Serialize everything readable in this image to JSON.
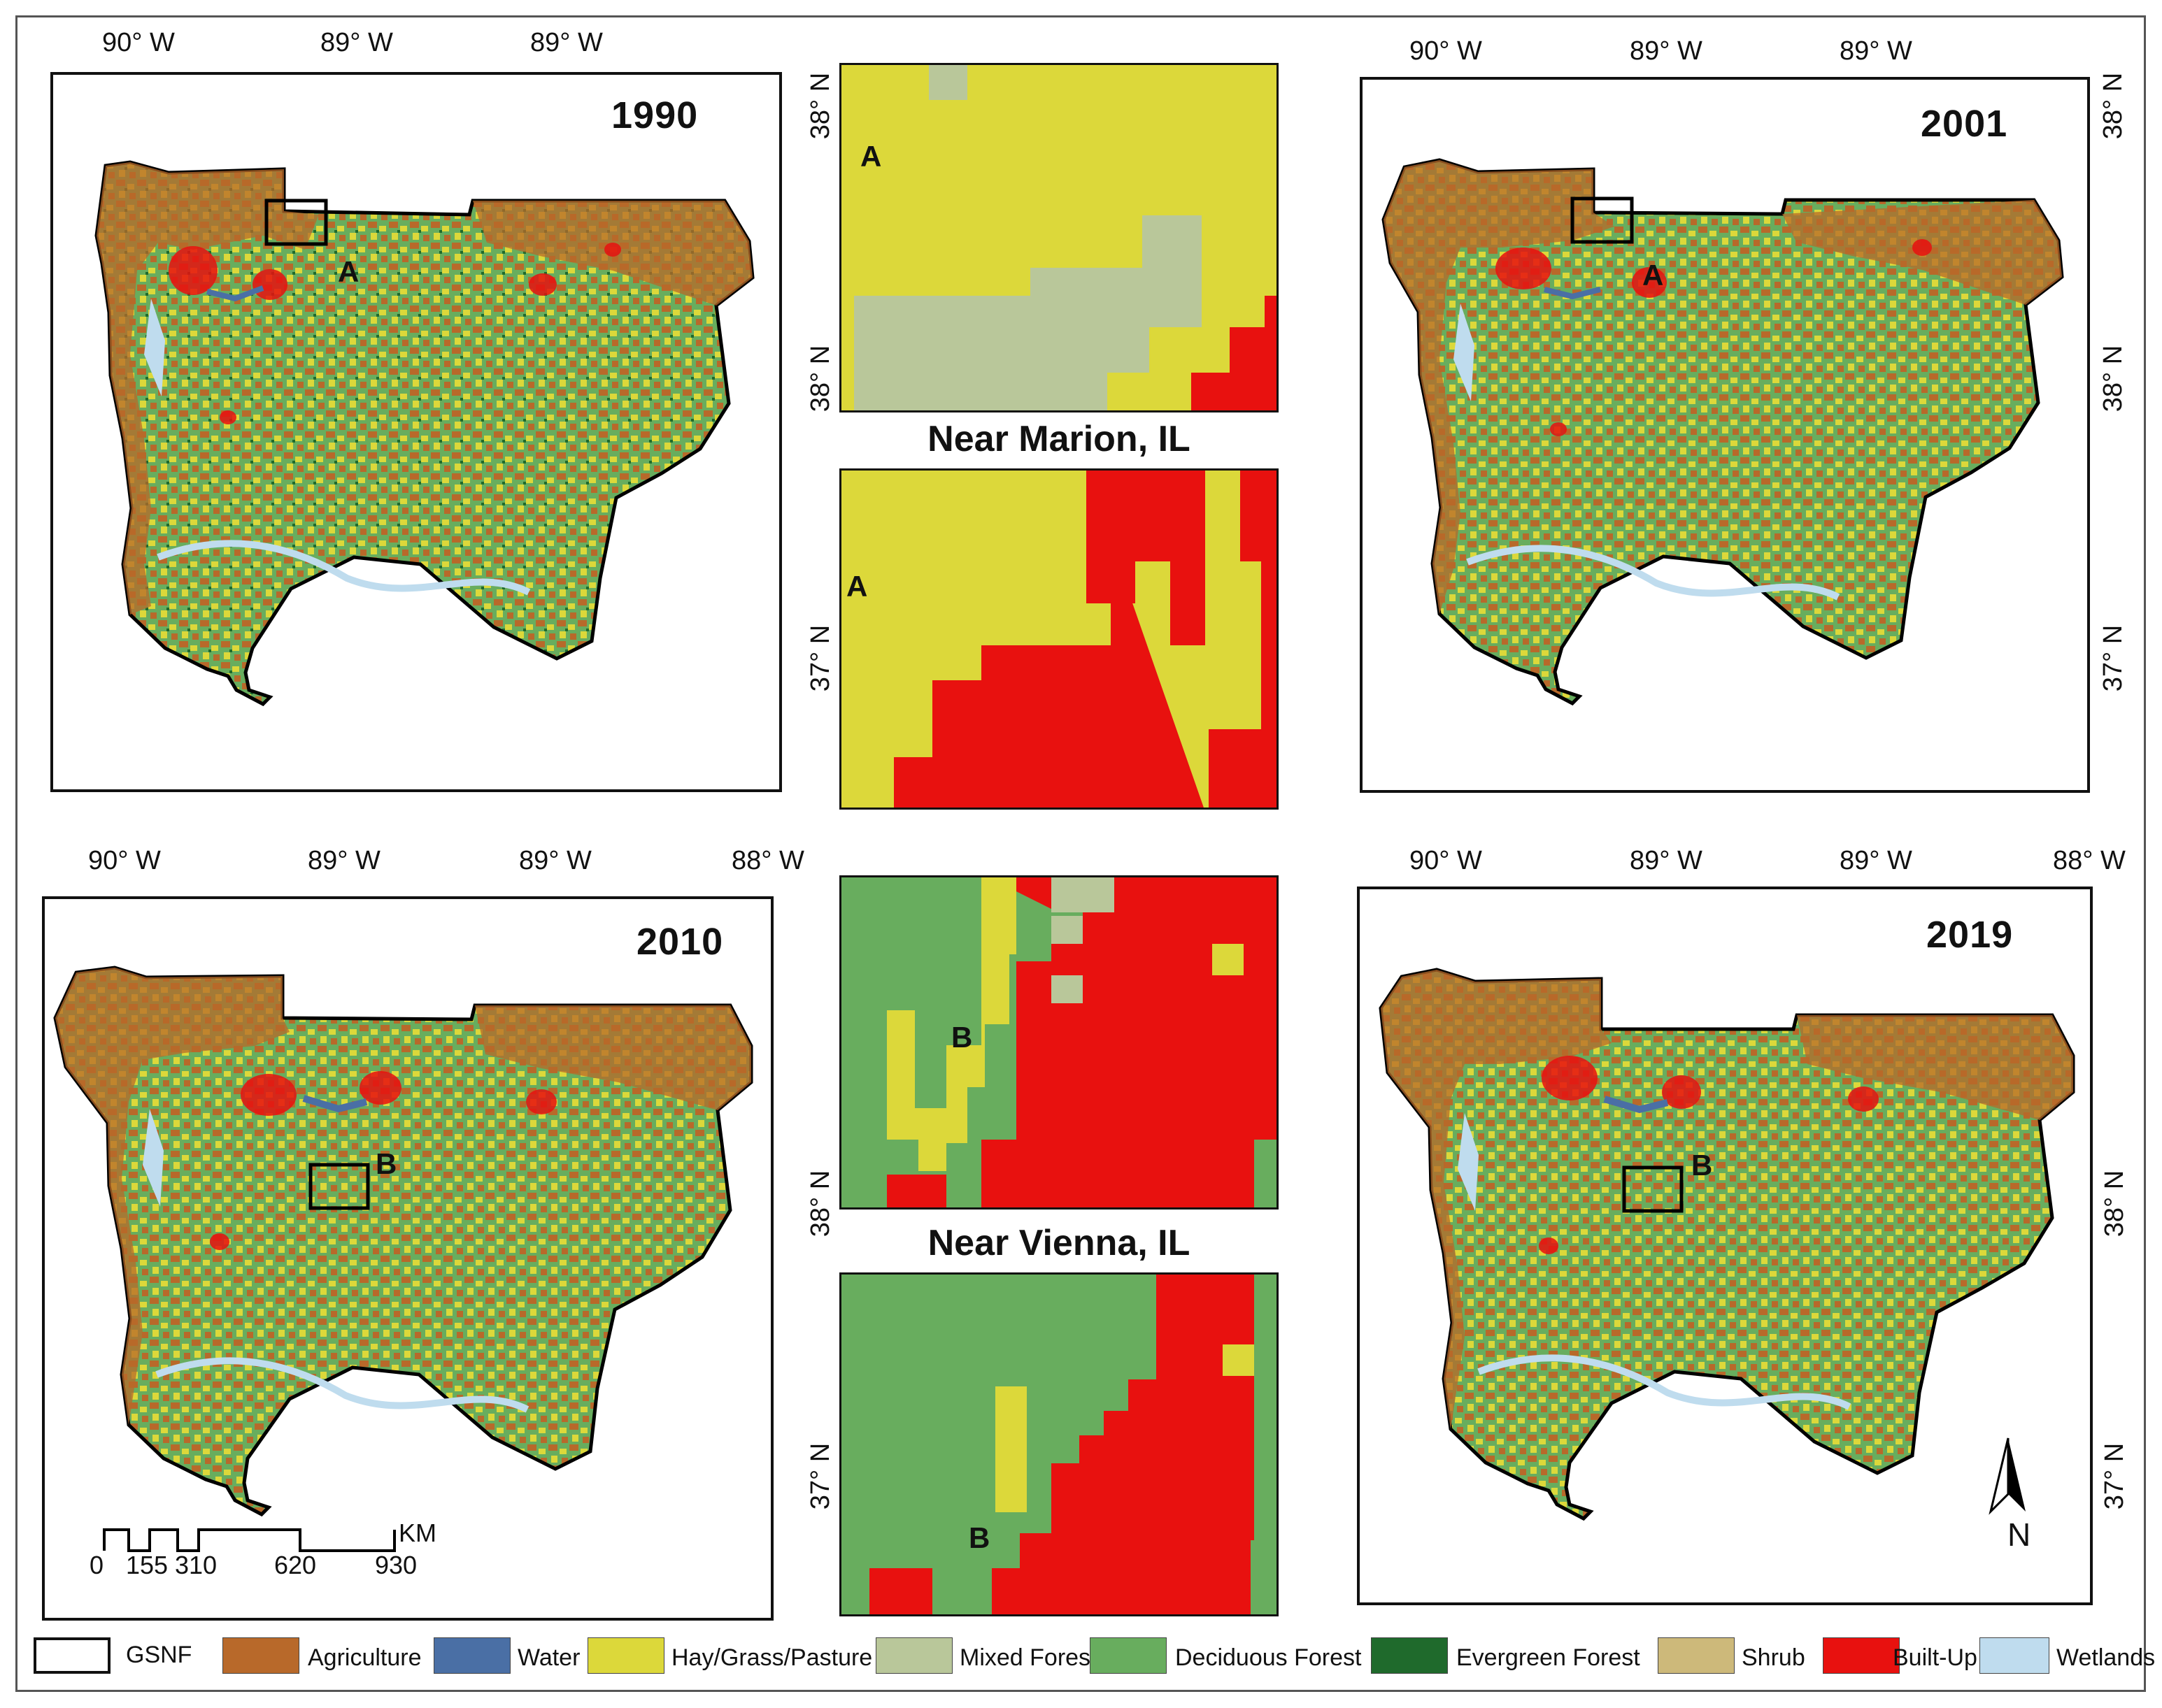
{
  "maps": [
    {
      "year": "1990",
      "lon_ticks": [
        "90° W",
        "89° W",
        "89° W"
      ],
      "lat_ticks": [],
      "marker": "A"
    },
    {
      "year": "2001",
      "lon_ticks": [
        "90° W",
        "89° W",
        "89° W"
      ],
      "lat_ticks": [
        "38° N",
        "38° N",
        "37° N"
      ],
      "marker": "A"
    },
    {
      "year": "2010",
      "lon_ticks": [
        "90° W",
        "89° W",
        "89° W",
        "88° W"
      ],
      "lat_ticks": [],
      "marker": "B"
    },
    {
      "year": "2019",
      "lon_ticks": [
        "90° W",
        "89° W",
        "89° W",
        "88° W"
      ],
      "lat_ticks": [
        "38° N",
        "37° N"
      ],
      "marker": "B"
    }
  ],
  "insets": {
    "top_title": "Near Marion, IL",
    "bottom_title": "Near Vienna, IL",
    "top_upper_lat": [
      "38° N",
      "38° N"
    ],
    "top_lower_lat": [
      "37° N"
    ],
    "bottom_upper_lat": [
      "38° N"
    ],
    "bottom_lower_lat": [
      "37° N"
    ],
    "label_a": "A",
    "label_b": "B"
  },
  "scale_bar": {
    "unit": "KM",
    "labels": [
      "0",
      "155",
      "310",
      "620",
      "930"
    ]
  },
  "north_arrow": {
    "label": "N"
  },
  "legend": [
    {
      "label": "GSNF",
      "color": "#ffffff"
    },
    {
      "label": "Agriculture",
      "color": "#b8692a"
    },
    {
      "label": "Water",
      "color": "#4a6fa5"
    },
    {
      "label": "Hay/Grass/Pasture",
      "color": "#dcd83a"
    },
    {
      "label": "Mixed Forest",
      "color": "#b9c79a"
    },
    {
      "label": "Deciduous Forest",
      "color": "#68ad5e"
    },
    {
      "label": "Evergreen Forest",
      "color": "#1f6a2c"
    },
    {
      "label": "Shrub",
      "color": "#cdb97a"
    },
    {
      "label": "Built-Up",
      "color": "#e8110f"
    },
    {
      "label": "Wetlands",
      "color": "#bfdcee"
    }
  ]
}
